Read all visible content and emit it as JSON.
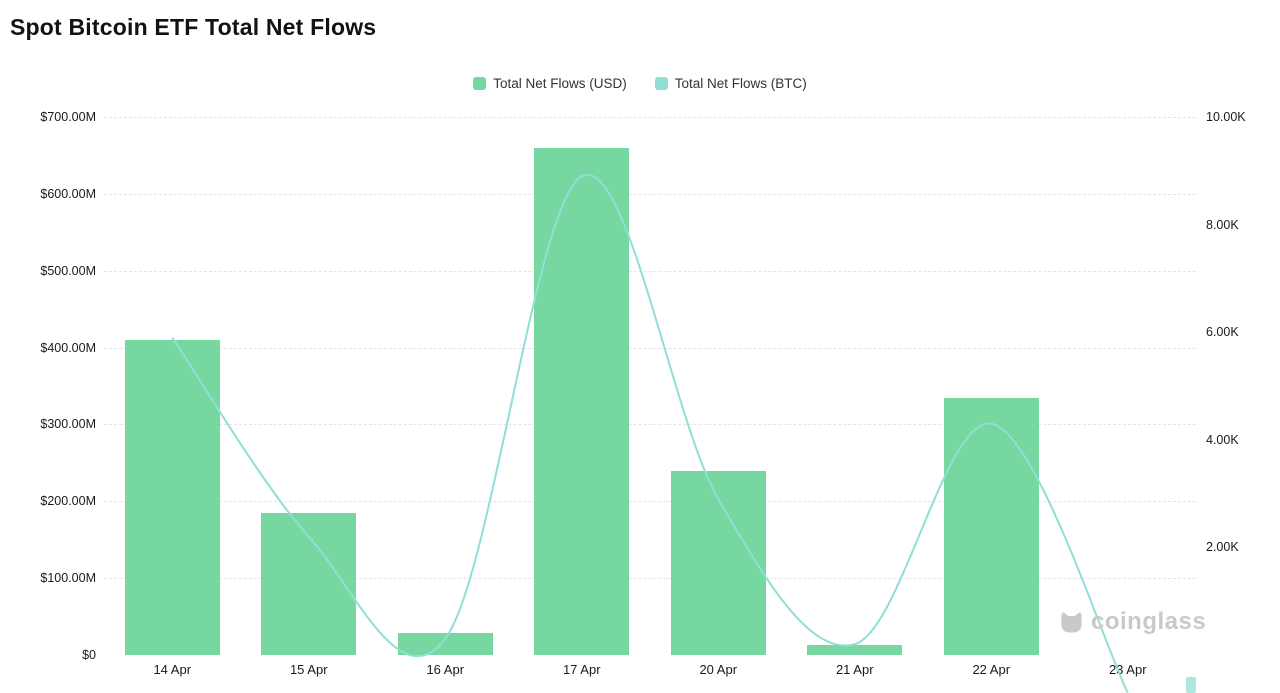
{
  "title": "Spot Bitcoin ETF Total Net Flows",
  "legend": [
    {
      "label": "Total Net Flows (USD)",
      "color": "#77d7a0"
    },
    {
      "label": "Total Net Flows (BTC)",
      "color": "#8fdfd6"
    }
  ],
  "watermark": "coinglass",
  "chart_data": {
    "type": "bar",
    "subtype": "bar+line combo, dual y-axis",
    "title": "Spot Bitcoin ETF Total Net Flows",
    "categories": [
      "14 Apr",
      "15 Apr",
      "16 Apr",
      "17 Apr",
      "20 Apr",
      "21 Apr",
      "22 Apr",
      "23 Apr"
    ],
    "series": [
      {
        "name": "Total Net Flows (USD)",
        "type": "bar",
        "axis": "left",
        "unit": "USD millions",
        "color": "#77d7a0",
        "values": [
          410,
          185,
          28,
          660,
          240,
          13,
          335,
          0
        ]
      },
      {
        "name": "Total Net Flows (BTC)",
        "type": "line",
        "axis": "right",
        "unit": "BTC thousands",
        "color": "#8fdfd6",
        "values": [
          5.9,
          2.2,
          0.3,
          8.9,
          2.9,
          0.2,
          4.3,
          -0.7
        ]
      }
    ],
    "left_axis": {
      "unit": "USD",
      "ticks": [
        "$0",
        "$100.00M",
        "$200.00M",
        "$300.00M",
        "$400.00M",
        "$500.00M",
        "$600.00M",
        "$700.00M"
      ],
      "tick_values": [
        0,
        100,
        200,
        300,
        400,
        500,
        600,
        700
      ],
      "max": 700
    },
    "right_axis": {
      "unit": "BTC",
      "ticks": [
        "2.00K",
        "4.00K",
        "6.00K",
        "8.00K",
        "10.00K"
      ],
      "tick_values": [
        2,
        4,
        6,
        8,
        10
      ],
      "max": 10
    },
    "grid": true,
    "legend_position": "top-center"
  }
}
